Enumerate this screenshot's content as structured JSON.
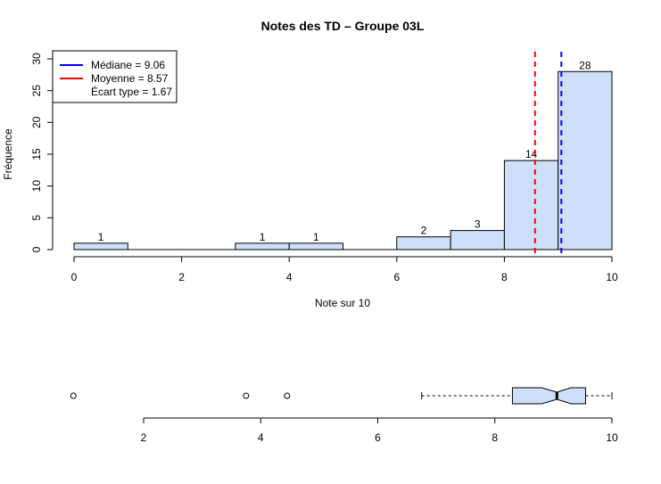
{
  "chart_data": [
    {
      "type": "bar",
      "subtype": "histogram",
      "title": "Notes des TD – Groupe 03L",
      "xlabel": "Note sur 10",
      "ylabel": "Fréquence",
      "xlim": [
        0,
        10
      ],
      "ylim": [
        0,
        30
      ],
      "xticks": [
        "0",
        "2",
        "4",
        "6",
        "8",
        "10"
      ],
      "yticks": [
        "0",
        "5",
        "10",
        "15",
        "20",
        "25",
        "30"
      ],
      "bins": [
        {
          "from": 0,
          "to": 1,
          "count": 1,
          "label": "1"
        },
        {
          "from": 1,
          "to": 2,
          "count": 0,
          "label": ""
        },
        {
          "from": 2,
          "to": 3,
          "count": 0,
          "label": ""
        },
        {
          "from": 3,
          "to": 4,
          "count": 1,
          "label": "1"
        },
        {
          "from": 4,
          "to": 5,
          "count": 1,
          "label": "1"
        },
        {
          "from": 5,
          "to": 6,
          "count": 0,
          "label": ""
        },
        {
          "from": 6,
          "to": 7,
          "count": 2,
          "label": "2"
        },
        {
          "from": 7,
          "to": 8,
          "count": 3,
          "label": "3"
        },
        {
          "from": 8,
          "to": 9,
          "count": 14,
          "label": "14"
        },
        {
          "from": 9,
          "to": 10,
          "count": 28,
          "label": "28"
        }
      ],
      "reference_lines": [
        {
          "name": "Médiane",
          "value": 9.06,
          "color": "#0000ff",
          "style": "dashed"
        },
        {
          "name": "Moyenne",
          "value": 8.57,
          "color": "#ff0000",
          "style": "dashed"
        }
      ],
      "legend": {
        "placement": "top-left",
        "entries": [
          {
            "text": "Médiane = 9.06",
            "color": "#0000ff",
            "line": true
          },
          {
            "text": "Moyenne = 8.57",
            "color": "#ff0000",
            "line": true
          },
          {
            "text": "Écart type = 1.67",
            "color": "",
            "line": false
          }
        ]
      },
      "bar_fill": "#cddff9",
      "bar_stroke": "#000000"
    },
    {
      "type": "boxplot",
      "orientation": "horizontal",
      "notched": true,
      "xlim": [
        0.8,
        10
      ],
      "xticks": [
        "2",
        "4",
        "6",
        "8",
        "10"
      ],
      "whisker_low": 6.75,
      "q1": 8.3,
      "median": 9.06,
      "q3": 9.55,
      "whisker_high": 10,
      "notch_low": 8.8,
      "notch_high": 9.3,
      "outliers": [
        0.8,
        3.75,
        4.45
      ],
      "fill": "#cddff9"
    }
  ]
}
